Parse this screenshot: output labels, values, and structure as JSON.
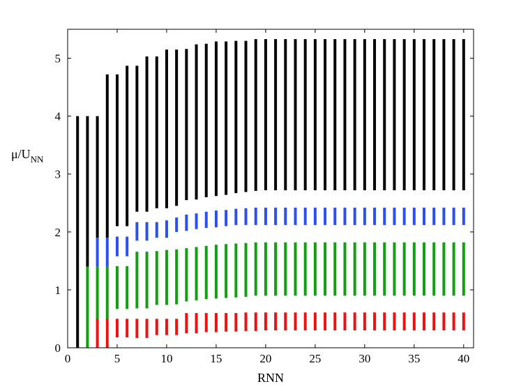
{
  "chart_data": {
    "type": "bar",
    "xlabel": "RNN",
    "ylabel": {
      "main": "μ/U",
      "sub": "NN"
    },
    "xlim": [
      0,
      41
    ],
    "ylim": [
      0,
      5.5
    ],
    "xticks": [
      0,
      5,
      10,
      15,
      20,
      25,
      30,
      35,
      40
    ],
    "yticks": [
      0,
      1,
      2,
      3,
      4,
      5
    ],
    "grid": false,
    "colors": {
      "black": "#000000",
      "blue": "#2a4ff5",
      "green": "#12a012",
      "red": "#f01010"
    },
    "series": [
      {
        "color": "black",
        "ranges": [
          [
            1,
            0,
            4.0
          ],
          [
            2,
            1.4,
            4.0
          ],
          [
            3,
            1.9,
            4.0
          ],
          [
            4,
            1.9,
            4.72
          ],
          [
            5,
            2.1,
            4.72
          ],
          [
            6,
            2.1,
            4.87
          ],
          [
            7,
            2.35,
            4.87
          ],
          [
            8,
            2.35,
            5.03
          ],
          [
            9,
            2.41,
            5.03
          ],
          [
            10,
            2.41,
            5.15
          ],
          [
            11,
            2.45,
            5.15
          ],
          [
            12,
            2.55,
            5.16
          ],
          [
            13,
            2.56,
            5.24
          ],
          [
            14,
            2.6,
            5.25
          ],
          [
            15,
            2.62,
            5.29
          ],
          [
            16,
            2.64,
            5.29
          ],
          [
            17,
            2.67,
            5.3
          ],
          [
            18,
            2.69,
            5.3
          ],
          [
            19,
            2.71,
            5.33
          ],
          [
            20,
            2.72,
            5.33
          ],
          [
            21,
            2.72,
            5.33
          ],
          [
            22,
            2.72,
            5.33
          ],
          [
            23,
            2.72,
            5.33
          ],
          [
            24,
            2.72,
            5.33
          ],
          [
            25,
            2.72,
            5.33
          ],
          [
            26,
            2.72,
            5.33
          ],
          [
            27,
            2.72,
            5.33
          ],
          [
            28,
            2.72,
            5.33
          ],
          [
            29,
            2.72,
            5.33
          ],
          [
            30,
            2.72,
            5.33
          ],
          [
            31,
            2.72,
            5.33
          ],
          [
            32,
            2.72,
            5.33
          ],
          [
            33,
            2.72,
            5.33
          ],
          [
            34,
            2.72,
            5.33
          ],
          [
            35,
            2.72,
            5.33
          ],
          [
            36,
            2.72,
            5.33
          ],
          [
            37,
            2.72,
            5.33
          ],
          [
            38,
            2.72,
            5.33
          ],
          [
            39,
            2.72,
            5.33
          ],
          [
            40,
            2.72,
            5.33
          ]
        ]
      },
      {
        "color": "blue",
        "ranges": [
          [
            3,
            1.4,
            1.9
          ],
          [
            4,
            1.4,
            1.9
          ],
          [
            5,
            1.58,
            1.92
          ],
          [
            6,
            1.58,
            1.92
          ],
          [
            7,
            1.85,
            2.17
          ],
          [
            8,
            1.85,
            2.17
          ],
          [
            9,
            1.9,
            2.17
          ],
          [
            10,
            1.9,
            2.2
          ],
          [
            11,
            2.0,
            2.25
          ],
          [
            12,
            2.02,
            2.3
          ],
          [
            13,
            2.05,
            2.32
          ],
          [
            14,
            2.07,
            2.35
          ],
          [
            15,
            2.08,
            2.37
          ],
          [
            16,
            2.1,
            2.38
          ],
          [
            17,
            2.12,
            2.4
          ],
          [
            18,
            2.12,
            2.41
          ],
          [
            19,
            2.12,
            2.42
          ],
          [
            20,
            2.12,
            2.42
          ],
          [
            21,
            2.12,
            2.42
          ],
          [
            22,
            2.12,
            2.42
          ],
          [
            23,
            2.12,
            2.42
          ],
          [
            24,
            2.12,
            2.42
          ],
          [
            25,
            2.12,
            2.42
          ],
          [
            26,
            2.12,
            2.42
          ],
          [
            27,
            2.12,
            2.42
          ],
          [
            28,
            2.12,
            2.42
          ],
          [
            29,
            2.12,
            2.42
          ],
          [
            30,
            2.12,
            2.42
          ],
          [
            31,
            2.12,
            2.42
          ],
          [
            32,
            2.12,
            2.42
          ],
          [
            33,
            2.12,
            2.42
          ],
          [
            34,
            2.12,
            2.42
          ],
          [
            35,
            2.12,
            2.42
          ],
          [
            36,
            2.12,
            2.42
          ],
          [
            37,
            2.12,
            2.42
          ],
          [
            38,
            2.12,
            2.42
          ],
          [
            39,
            2.12,
            2.42
          ],
          [
            40,
            2.12,
            2.42
          ]
        ]
      },
      {
        "color": "green",
        "ranges": [
          [
            2,
            0,
            1.4
          ],
          [
            3,
            0.5,
            1.4
          ],
          [
            4,
            0.5,
            1.4
          ],
          [
            5,
            0.67,
            1.41
          ],
          [
            6,
            0.67,
            1.41
          ],
          [
            7,
            0.68,
            1.66
          ],
          [
            8,
            0.68,
            1.66
          ],
          [
            9,
            0.74,
            1.67
          ],
          [
            10,
            0.74,
            1.69
          ],
          [
            11,
            0.75,
            1.7
          ],
          [
            12,
            0.8,
            1.72
          ],
          [
            13,
            0.82,
            1.74
          ],
          [
            14,
            0.84,
            1.76
          ],
          [
            15,
            0.85,
            1.78
          ],
          [
            16,
            0.86,
            1.79
          ],
          [
            17,
            0.87,
            1.8
          ],
          [
            18,
            0.88,
            1.81
          ],
          [
            19,
            0.9,
            1.82
          ],
          [
            20,
            0.9,
            1.82
          ],
          [
            21,
            0.9,
            1.82
          ],
          [
            22,
            0.9,
            1.82
          ],
          [
            23,
            0.9,
            1.82
          ],
          [
            24,
            0.9,
            1.82
          ],
          [
            25,
            0.9,
            1.82
          ],
          [
            26,
            0.9,
            1.82
          ],
          [
            27,
            0.9,
            1.82
          ],
          [
            28,
            0.9,
            1.82
          ],
          [
            29,
            0.9,
            1.82
          ],
          [
            30,
            0.9,
            1.82
          ],
          [
            31,
            0.9,
            1.82
          ],
          [
            32,
            0.9,
            1.82
          ],
          [
            33,
            0.9,
            1.82
          ],
          [
            34,
            0.9,
            1.82
          ],
          [
            35,
            0.9,
            1.82
          ],
          [
            36,
            0.9,
            1.82
          ],
          [
            37,
            0.9,
            1.82
          ],
          [
            38,
            0.9,
            1.82
          ],
          [
            39,
            0.9,
            1.82
          ],
          [
            40,
            0.9,
            1.82
          ]
        ]
      },
      {
        "color": "red",
        "ranges": [
          [
            3,
            0,
            0.5
          ],
          [
            4,
            0,
            0.5
          ],
          [
            5,
            0.18,
            0.5
          ],
          [
            6,
            0.18,
            0.5
          ],
          [
            7,
            0.17,
            0.5
          ],
          [
            8,
            0.17,
            0.5
          ],
          [
            9,
            0.22,
            0.5
          ],
          [
            10,
            0.22,
            0.5
          ],
          [
            11,
            0.22,
            0.5
          ],
          [
            12,
            0.25,
            0.6
          ],
          [
            13,
            0.25,
            0.6
          ],
          [
            14,
            0.27,
            0.6
          ],
          [
            15,
            0.27,
            0.6
          ],
          [
            16,
            0.28,
            0.6
          ],
          [
            17,
            0.28,
            0.6
          ],
          [
            18,
            0.29,
            0.61
          ],
          [
            19,
            0.29,
            0.61
          ],
          [
            20,
            0.3,
            0.61
          ],
          [
            21,
            0.3,
            0.61
          ],
          [
            22,
            0.3,
            0.61
          ],
          [
            23,
            0.3,
            0.61
          ],
          [
            24,
            0.3,
            0.61
          ],
          [
            25,
            0.3,
            0.61
          ],
          [
            26,
            0.3,
            0.61
          ],
          [
            27,
            0.3,
            0.61
          ],
          [
            28,
            0.3,
            0.61
          ],
          [
            29,
            0.3,
            0.61
          ],
          [
            30,
            0.3,
            0.61
          ],
          [
            31,
            0.3,
            0.61
          ],
          [
            32,
            0.3,
            0.61
          ],
          [
            33,
            0.3,
            0.61
          ],
          [
            34,
            0.3,
            0.61
          ],
          [
            35,
            0.3,
            0.61
          ],
          [
            36,
            0.3,
            0.61
          ],
          [
            37,
            0.3,
            0.61
          ],
          [
            38,
            0.3,
            0.61
          ],
          [
            39,
            0.3,
            0.61
          ],
          [
            40,
            0.3,
            0.61
          ]
        ]
      }
    ]
  }
}
